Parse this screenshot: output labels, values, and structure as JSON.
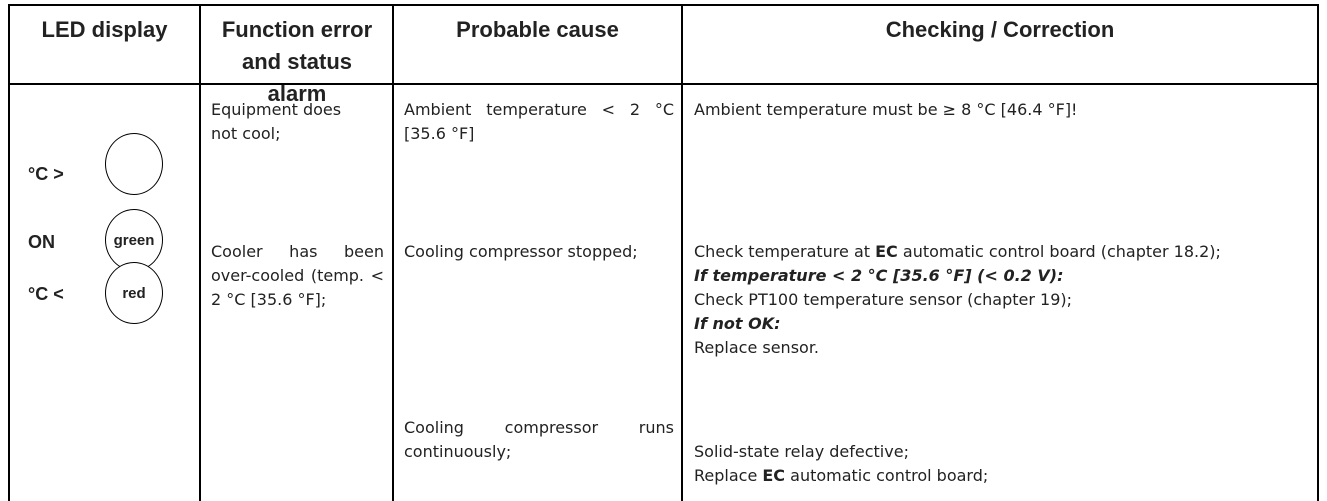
{
  "table": {
    "headers": [
      "LED display",
      "Function error and status alarm",
      "Probable cause",
      "Checking / Correction"
    ],
    "led": [
      {
        "label": "°C >"
      },
      {
        "label": "ON",
        "lamp": "green"
      },
      {
        "label": "°C <",
        "lamp": "red"
      }
    ],
    "functions": [
      "Equipment does not cool;",
      "Cooler has been over-cooled (temp. < 2 °C [35.6 °F];"
    ],
    "causes": [
      "Ambient temperature < 2 °C [35.6 °F]",
      "Cooling compressor stopped;",
      "Cooling compressor runs continuously;"
    ],
    "checks": [
      [
        [
          {
            "text": "Ambient temperature must be ≥ 8 °C [46.4 °F]!"
          }
        ]
      ],
      [
        [
          {
            "text": "Check temperature at "
          },
          {
            "text": "EC",
            "style": "bold"
          },
          {
            "text": " automatic control board (chapter 18.2);"
          }
        ],
        [
          {
            "text": "If temperature < 2 °C [35.6 °F] (< 0.2 V):",
            "style": "bold-italic"
          }
        ],
        [
          {
            "text": "Check PT100 temperature sensor (chapter 19);"
          }
        ],
        [
          {
            "text": "If not OK:",
            "style": "bold-italic"
          }
        ],
        [
          {
            "text": "Replace sensor."
          }
        ]
      ],
      [
        [
          {
            "text": "Solid-state relay defective;"
          }
        ],
        [
          {
            "text": "Replace "
          },
          {
            "text": "EC",
            "style": "bold"
          },
          {
            "text": " automatic control board;"
          }
        ]
      ]
    ]
  }
}
